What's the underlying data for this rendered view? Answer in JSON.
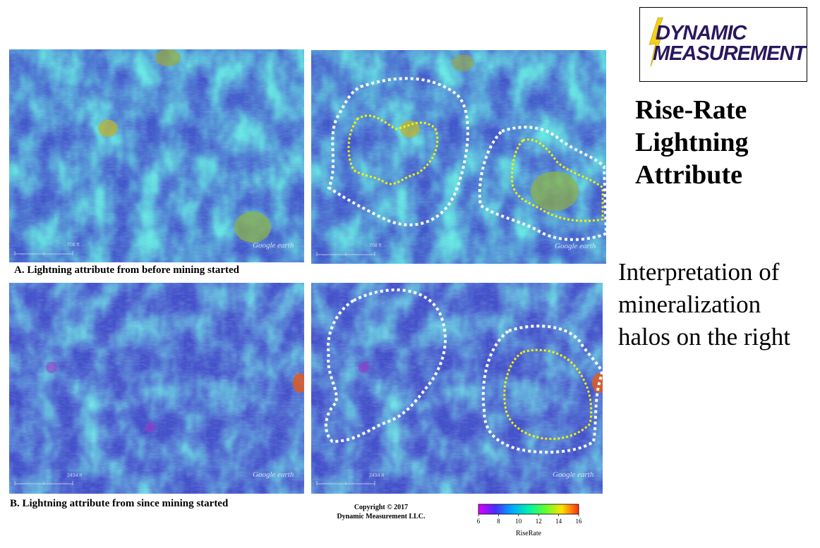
{
  "panels": {
    "a_caption": "A. Lightning attribute from before mining started",
    "b_caption": "B. Lightning attribute from since mining started",
    "watermark": "Google earth",
    "scale_a": "708 ft",
    "scale_b": "2434 ft"
  },
  "logo": {
    "line1": "DYNAMIC",
    "line2": "MEASUREMENT",
    "bolt_color": "#f2d21c",
    "text_color": "#2a175e"
  },
  "title": {
    "line1": "Rise-Rate",
    "line2": "Lightning",
    "line3": "Attribute"
  },
  "interpretation": "Interpretation of mineralization halos on the right",
  "copyright": {
    "line1": "Copyright © 2017",
    "line2": "Dynamic Measurement LLC."
  },
  "colorbar": {
    "label": "RiseRate",
    "ticks": [
      "6",
      "8",
      "10",
      "12",
      "14",
      "16"
    ],
    "min": 6,
    "max": 16,
    "colors": [
      "#e000ff",
      "#4a2cff",
      "#00a8ff",
      "#00f0b0",
      "#60ff30",
      "#ffe000",
      "#ff3010"
    ]
  },
  "halo_colors": {
    "outer": "#ffffff",
    "inner": "#f2f200"
  }
}
